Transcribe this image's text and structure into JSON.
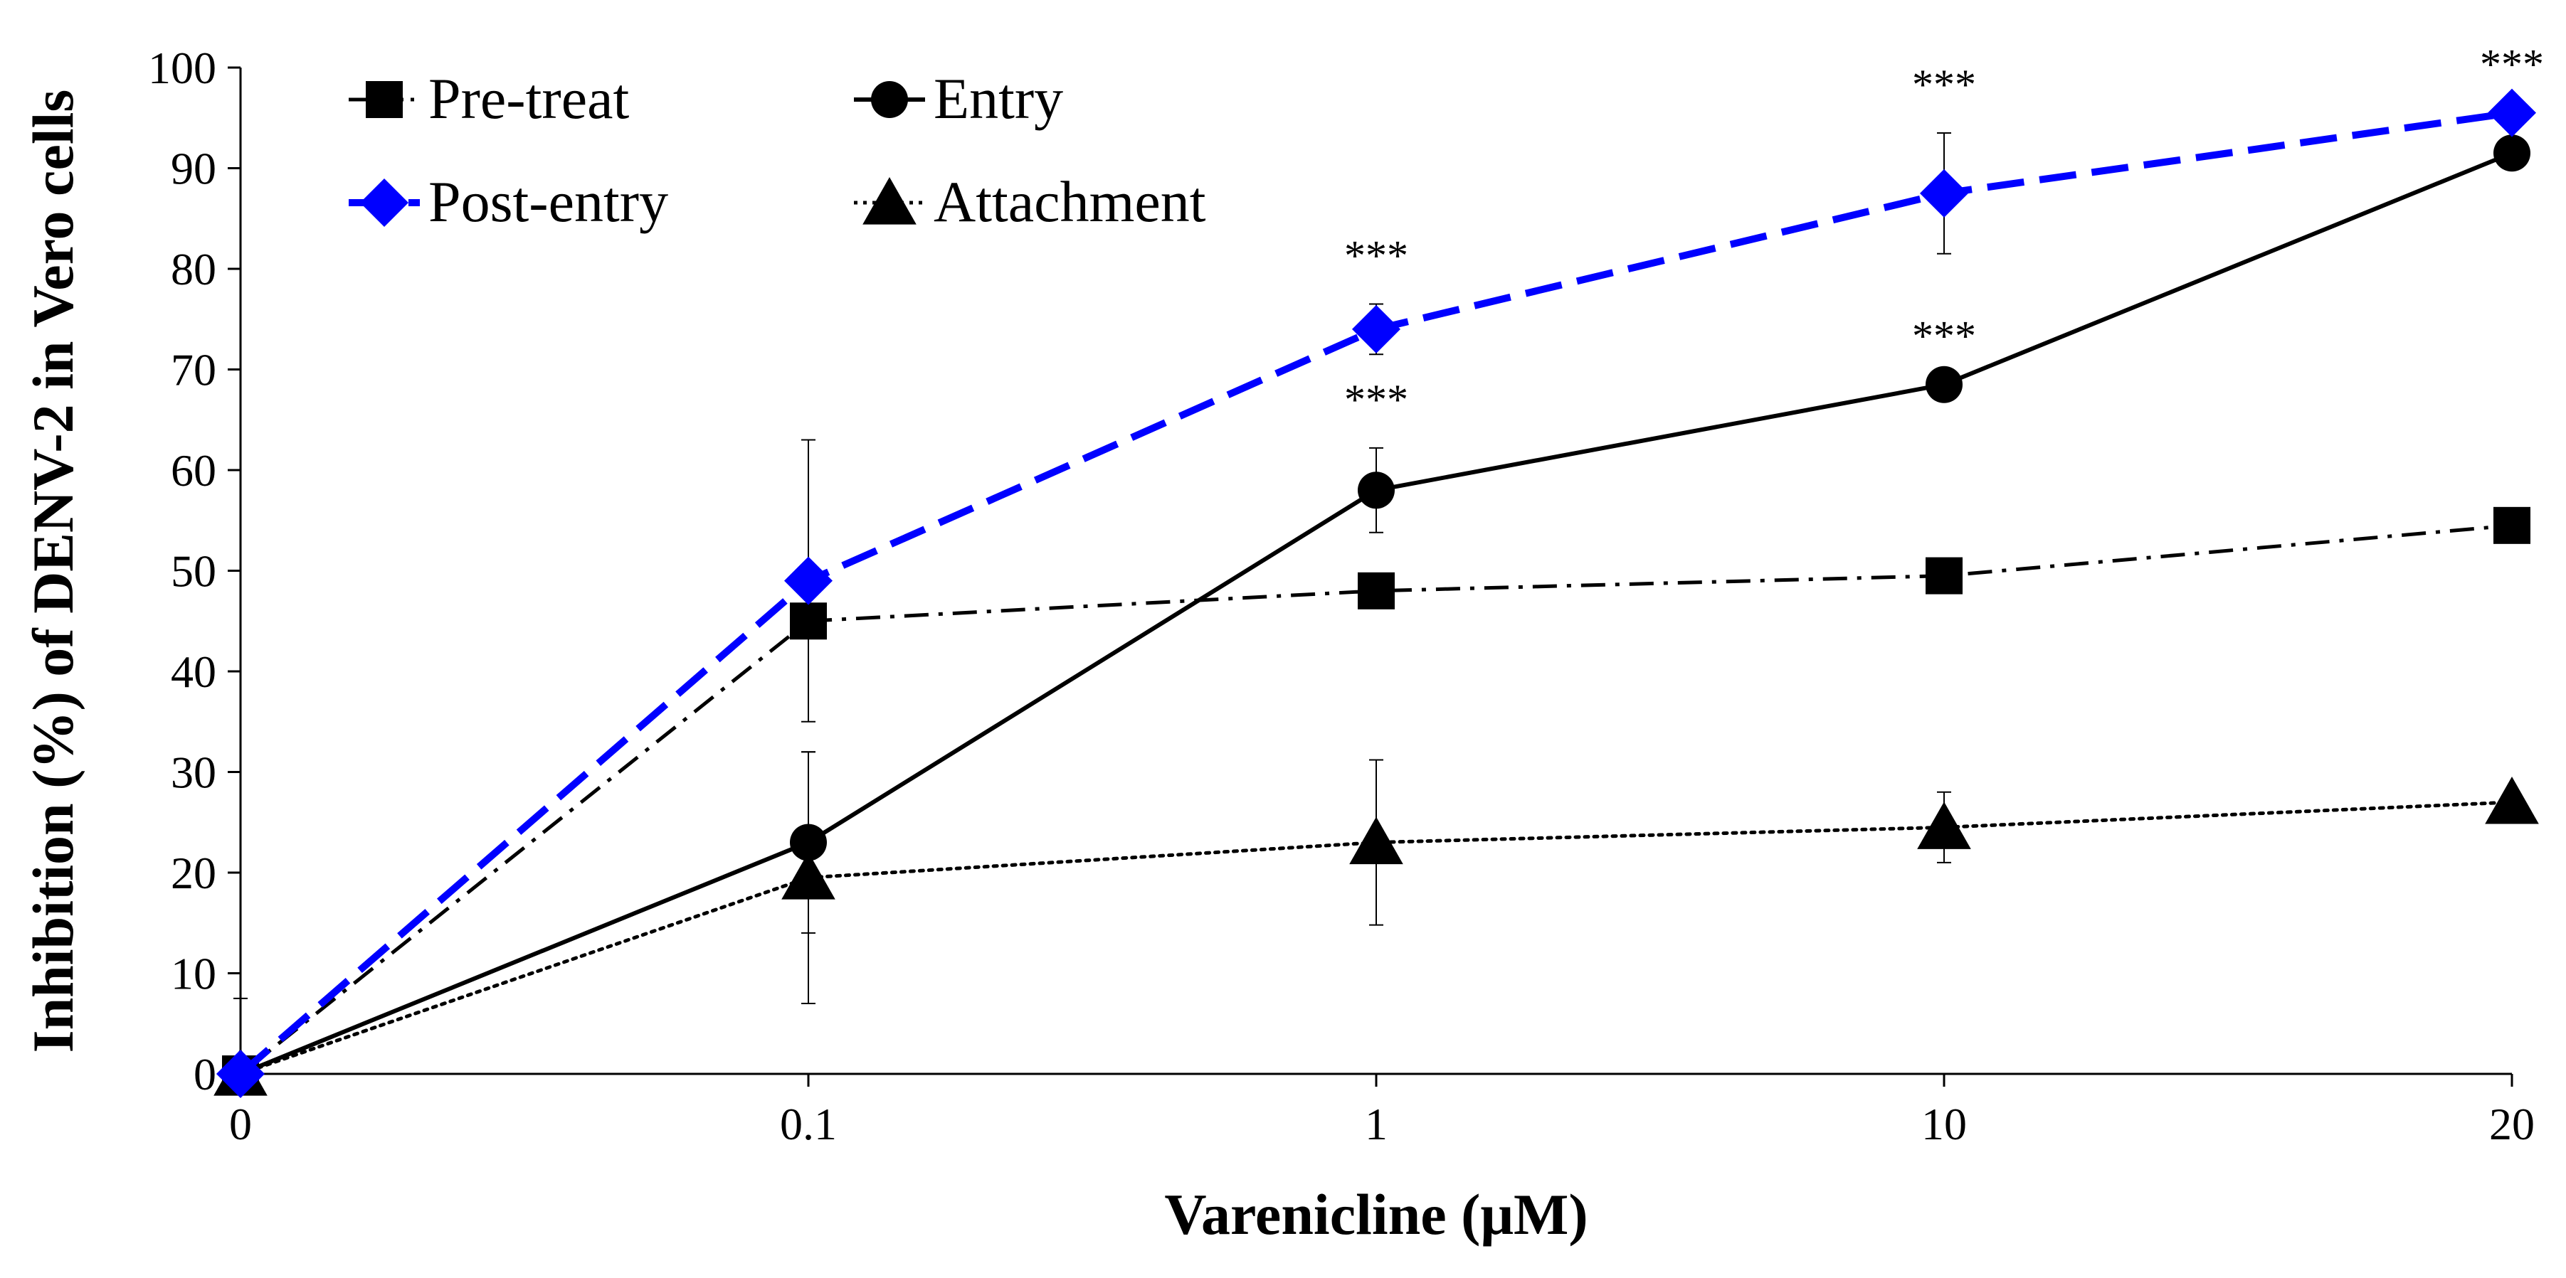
{
  "chart_data": {
    "type": "line",
    "title": "",
    "xlabel": "Varenicline (μM)",
    "ylabel": "Inhibition (%) of DENV-2 in Vero cells",
    "categories": [
      "0",
      "0.1",
      "1",
      "10",
      "20"
    ],
    "ylim": [
      0,
      100
    ],
    "yticks": [
      0,
      10,
      20,
      30,
      40,
      50,
      60,
      70,
      80,
      90,
      100
    ],
    "legend_position": "top-left",
    "series": [
      {
        "name": "Pre-treat",
        "marker": "square",
        "color": "#000000",
        "line_style": "dash-dot",
        "values": [
          0,
          45,
          48,
          49.5,
          54.5
        ],
        "error": [
          0,
          0,
          0,
          0,
          0
        ]
      },
      {
        "name": "Entry",
        "marker": "circle",
        "color": "#000000",
        "line_style": "solid",
        "values": [
          0,
          23,
          58,
          68.5,
          91.5
        ],
        "error": [
          0,
          9,
          4.2,
          0,
          0
        ]
      },
      {
        "name": "Post-entry",
        "marker": "diamond",
        "color": "#0000FF",
        "line_style": "long-dash",
        "values": [
          0,
          49,
          74,
          87.5,
          95.5
        ],
        "error": [
          0,
          14,
          2.5,
          6,
          0
        ]
      },
      {
        "name": "Attachment",
        "marker": "triangle",
        "color": "#000000",
        "line_style": "dotted",
        "values": [
          0,
          19.5,
          23,
          24.5,
          27
        ],
        "error": [
          7.5,
          12.5,
          8.2,
          3.5,
          0
        ]
      }
    ],
    "annotations": [
      {
        "text": "***",
        "series": "Post-entry",
        "category": "1"
      },
      {
        "text": "***",
        "series": "Entry",
        "category": "1"
      },
      {
        "text": "***",
        "series": "Post-entry",
        "category": "10"
      },
      {
        "text": "***",
        "series": "Entry",
        "category": "10"
      },
      {
        "text": "***",
        "series": "Post-entry",
        "category": "20"
      }
    ]
  }
}
